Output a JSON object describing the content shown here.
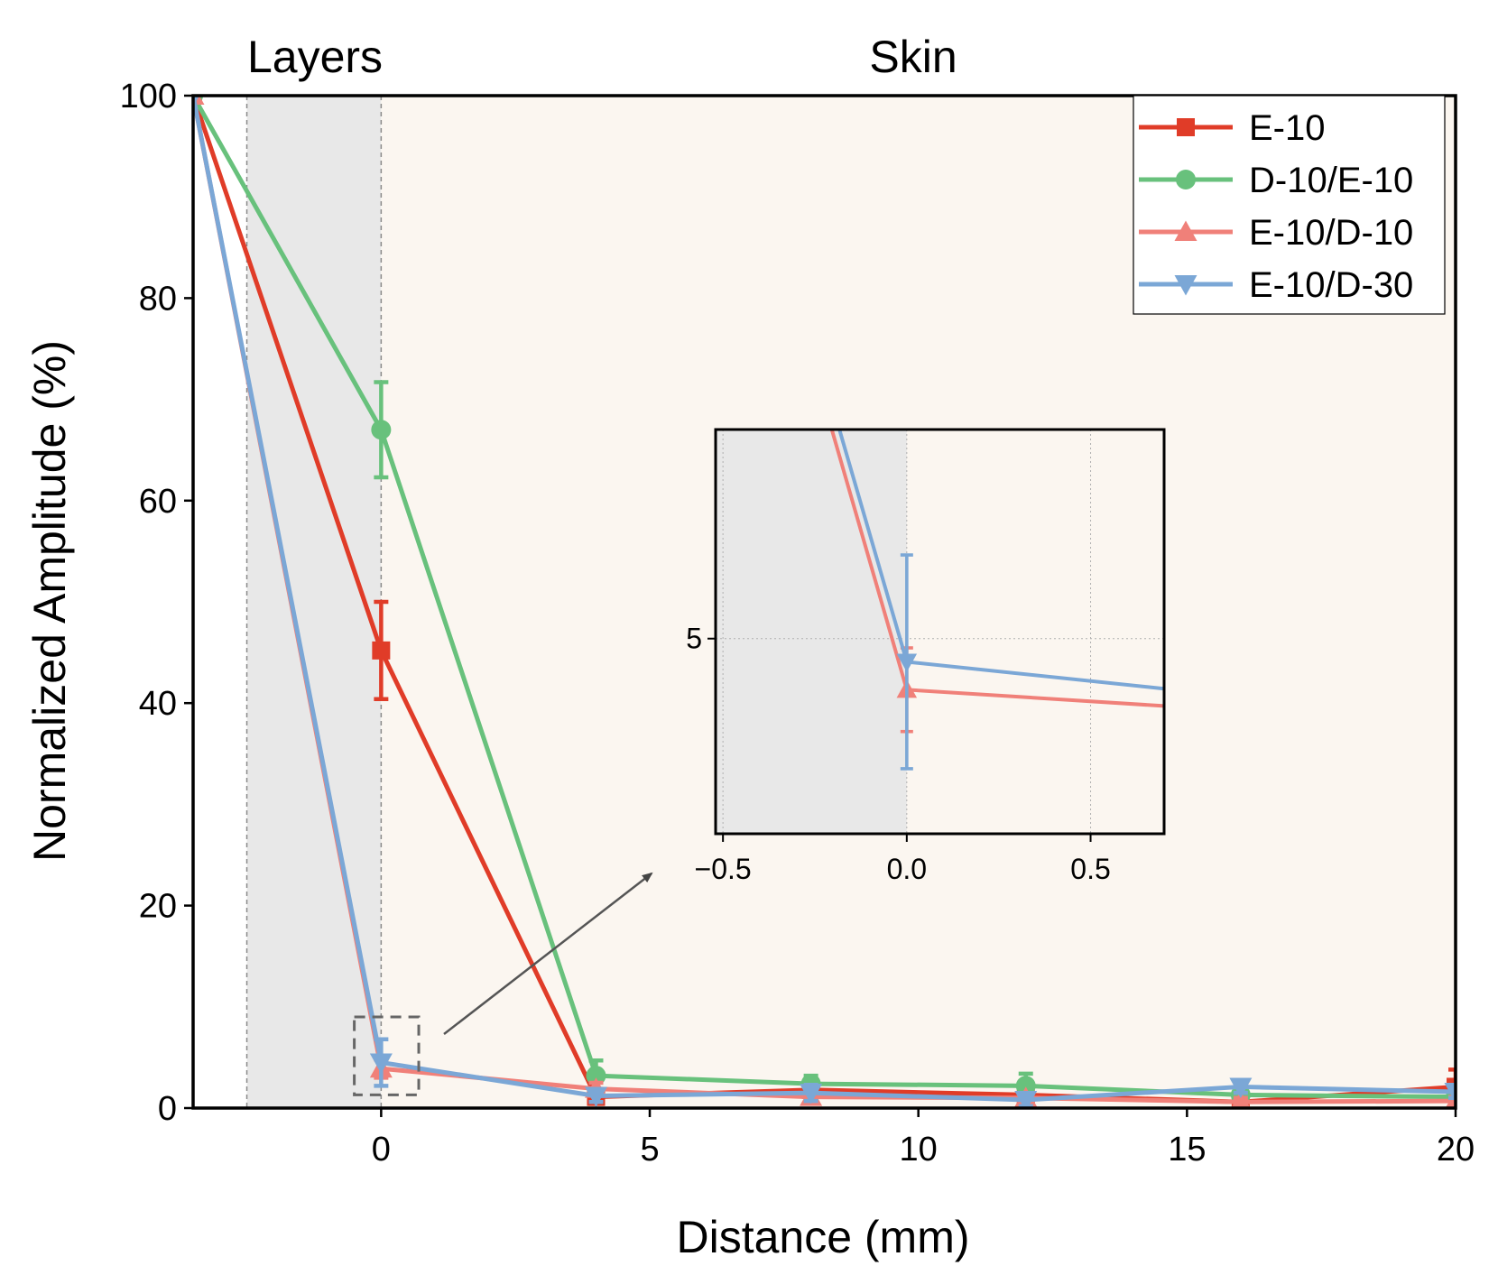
{
  "chart_data": {
    "type": "line",
    "xlabel": "Distance (mm)",
    "ylabel": "Normalized Amplitude (%)",
    "xlim": [
      -3.5,
      20
    ],
    "ylim": [
      0,
      100
    ],
    "x_ticks": [
      {
        "value": 0,
        "label": "0"
      },
      {
        "value": 5,
        "label": "5"
      },
      {
        "value": 10,
        "label": "10"
      },
      {
        "value": 15,
        "label": "15"
      },
      {
        "value": 20,
        "label": "20"
      }
    ],
    "y_ticks": [
      {
        "value": 0,
        "label": "0"
      },
      {
        "value": 20,
        "label": "20"
      },
      {
        "value": 40,
        "label": "40"
      },
      {
        "value": 60,
        "label": "60"
      },
      {
        "value": 80,
        "label": "80"
      },
      {
        "value": 100,
        "label": "100"
      }
    ],
    "regions": [
      {
        "label": "Layers",
        "x_range": [
          -2.5,
          0
        ],
        "color": "#e8e8e8"
      },
      {
        "label": "Skin",
        "x_range": [
          0,
          20
        ],
        "color": "#fbf6f0"
      }
    ],
    "legend": {
      "position": "top-right"
    },
    "series": [
      {
        "name": "E-10",
        "color": "#e03c28",
        "marker": "square",
        "x": [
          -3.5,
          0,
          4,
          8,
          12,
          16,
          20
        ],
        "y": [
          100,
          45.2,
          1.1,
          1.8,
          1.3,
          0.6,
          2.1
        ],
        "err": [
          0,
          4.8,
          0.5,
          0.5,
          0.6,
          0.4,
          1.7
        ]
      },
      {
        "name": "D-10/E-10",
        "color": "#68c17c",
        "marker": "circle",
        "x": [
          -3.5,
          0,
          4,
          8,
          12,
          16,
          20
        ],
        "y": [
          100,
          67.0,
          3.2,
          2.4,
          2.2,
          1.3,
          1.1
        ],
        "err": [
          0,
          4.7,
          1.5,
          0.8,
          1.2,
          0.5,
          0.6
        ]
      },
      {
        "name": "E-10/D-10",
        "color": "#f08079",
        "marker": "triangle-up",
        "x": [
          -3.5,
          0,
          4,
          8,
          12,
          16,
          20
        ],
        "y": [
          100,
          3.9,
          1.9,
          1.1,
          1.0,
          0.6,
          0.7
        ],
        "err": [
          0,
          0.9,
          0.6,
          0.5,
          0.4,
          0.4,
          0.4
        ]
      },
      {
        "name": "E-10/D-30",
        "color": "#7ba7d6",
        "marker": "triangle-down",
        "x": [
          -3.5,
          0,
          4,
          8,
          12,
          16,
          20
        ],
        "y": [
          100,
          4.5,
          1.2,
          1.5,
          0.8,
          2.1,
          1.6
        ],
        "err": [
          0,
          2.3,
          0.6,
          0.8,
          0.6,
          0.6,
          0.6
        ]
      }
    ],
    "inset": {
      "xlim": [
        -0.52,
        0.7
      ],
      "ylim": [
        0.8,
        9.5
      ],
      "x_ticks": [
        {
          "value": -0.5,
          "label": "−0.5"
        },
        {
          "value": 0.0,
          "label": "0.0"
        },
        {
          "value": 0.5,
          "label": "0.5"
        }
      ],
      "y_ticks": [
        {
          "value": 5,
          "label": "5"
        }
      ],
      "shaded_x_range": [
        -0.52,
        0
      ],
      "series_names": [
        "E-10/D-10",
        "E-10/D-30"
      ]
    },
    "zoom_box": {
      "x_range": [
        -0.5,
        0.7
      ],
      "y_range": [
        1.3,
        9.0
      ]
    }
  }
}
